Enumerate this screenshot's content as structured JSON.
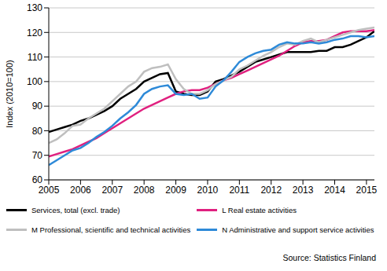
{
  "chart_data": {
    "type": "line",
    "y_label": "Index (2010=100)",
    "annotations": [
      "Source: Statistics Finland"
    ],
    "x": [
      2005,
      2005.25,
      2005.5,
      2005.75,
      2006,
      2006.25,
      2006.5,
      2006.75,
      2007,
      2007.25,
      2007.5,
      2007.75,
      2008,
      2008.25,
      2008.5,
      2008.75,
      2009,
      2009.25,
      2009.5,
      2009.75,
      2010,
      2010.25,
      2010.5,
      2010.75,
      2011,
      2011.25,
      2011.5,
      2011.75,
      2012,
      2012.25,
      2012.5,
      2012.75,
      2013,
      2013.25,
      2013.5,
      2013.75,
      2014,
      2014.25,
      2014.5,
      2014.75,
      2015,
      2015.25
    ],
    "series": [
      {
        "name": "Services, total  (excl. trade)",
        "color": "#000000",
        "values": [
          79.5,
          80.5,
          81.5,
          82.5,
          84,
          85,
          86.5,
          88,
          90,
          93,
          95,
          97,
          100,
          101.5,
          103,
          103.5,
          96,
          95,
          94.5,
          94.5,
          96,
          100,
          101,
          102.5,
          104,
          106,
          108,
          109,
          110,
          111,
          112,
          112,
          112,
          112,
          112.5,
          112.5,
          114,
          114,
          115,
          116.5,
          118,
          120.5
        ]
      },
      {
        "name": "L Real estate activities",
        "color": "#e0207f",
        "values": [
          69.5,
          70.5,
          71.5,
          72.5,
          74,
          75.5,
          77,
          79,
          81,
          83,
          85,
          87,
          89,
          90.5,
          92,
          93.5,
          95,
          96,
          96.5,
          96.5,
          97.5,
          99,
          100.5,
          101.5,
          103,
          104.5,
          106,
          107.5,
          109,
          110.5,
          112.5,
          114.5,
          116,
          116.5,
          116.5,
          117,
          118.5,
          120,
          120.5,
          120.5,
          120.5,
          121
        ]
      },
      {
        "name": "M Professional, scientific and technical activities",
        "color": "#bfbfbf",
        "values": [
          75,
          76.5,
          79,
          82,
          82.5,
          85,
          87,
          89,
          92,
          95,
          98,
          100,
          104,
          105.5,
          106,
          107,
          101,
          97,
          95,
          95,
          96.5,
          99,
          100.5,
          102,
          105,
          106.5,
          108.5,
          110.5,
          112,
          114,
          115.5,
          115,
          116.5,
          117.5,
          116,
          117,
          118,
          119,
          120,
          121,
          121.5,
          122
        ]
      },
      {
        "name": "N Administrative and support service activities",
        "color": "#2e8ad8",
        "values": [
          66,
          68,
          70,
          72,
          73,
          75,
          77.5,
          79.5,
          82,
          85,
          87.5,
          90.5,
          95,
          97,
          98,
          98.5,
          95,
          94.5,
          95,
          93,
          93.5,
          98,
          100.5,
          104,
          108,
          110,
          111.5,
          112.5,
          113,
          115,
          116,
          115.5,
          115.5,
          116,
          115.5,
          116,
          117,
          117.5,
          118.5,
          118.5,
          118,
          118.5
        ]
      }
    ],
    "xlim": [
      2005,
      2015.25
    ],
    "xticks": [
      2005,
      2006,
      2007,
      2008,
      2009,
      2010,
      2011,
      2012,
      2013,
      2014,
      2015
    ],
    "ylim": [
      60,
      130
    ],
    "yticks": [
      60,
      70,
      80,
      90,
      100,
      110,
      120,
      130
    ],
    "grid": true,
    "legend": "bottom"
  }
}
